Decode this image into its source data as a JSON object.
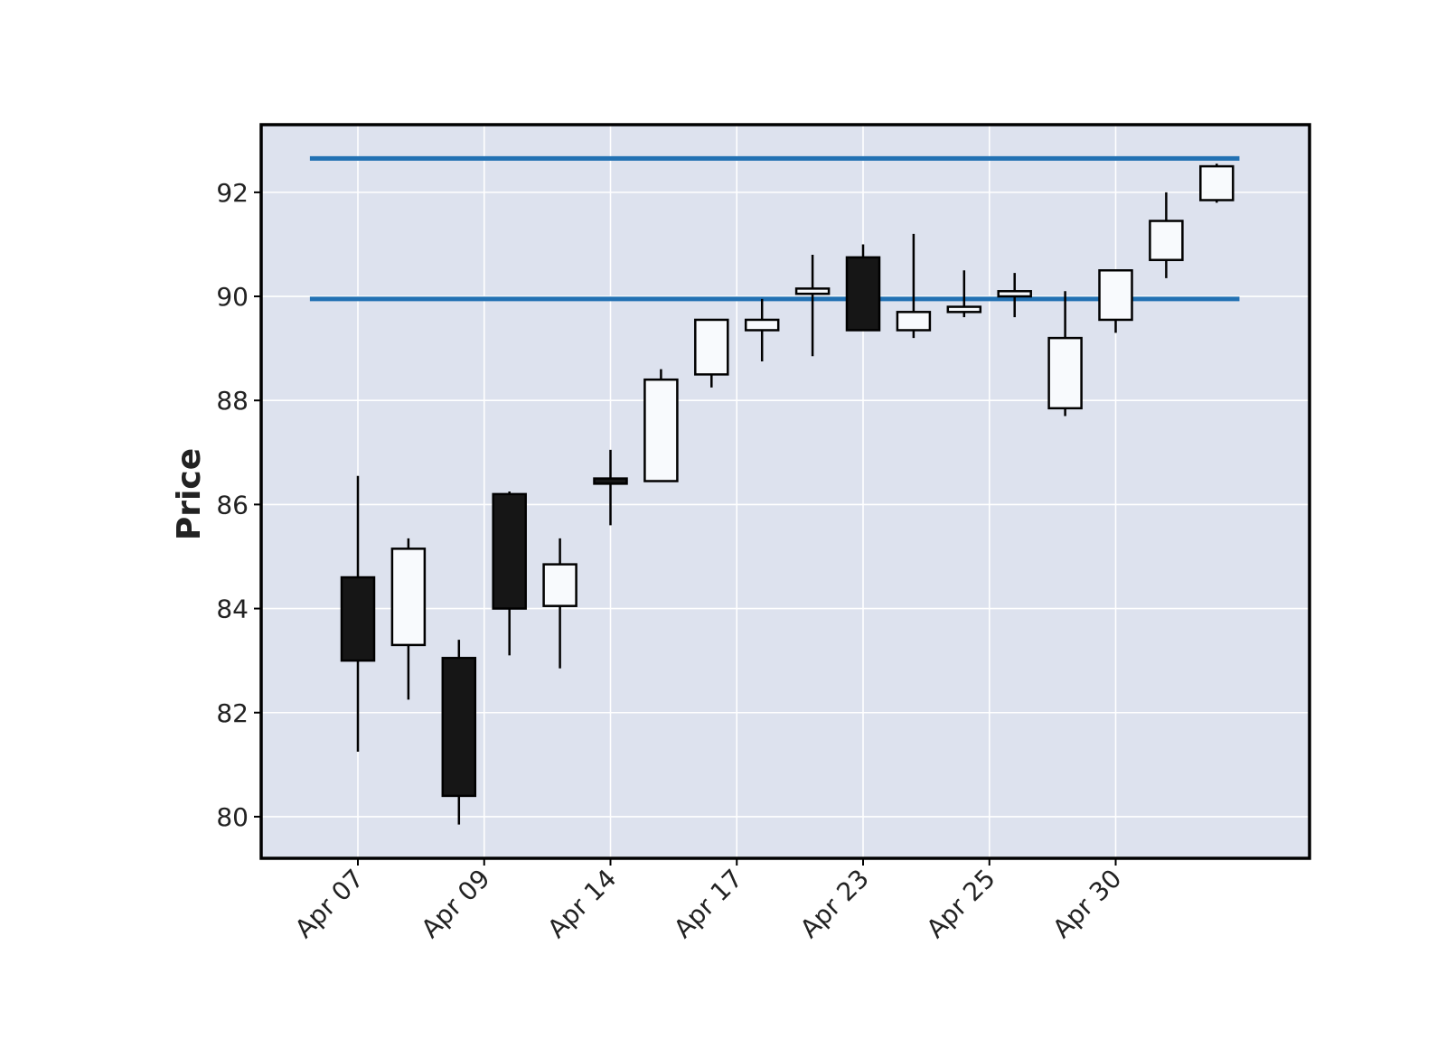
{
  "chart_data": {
    "type": "candlestick",
    "title": "",
    "xlabel": "",
    "ylabel": "Price",
    "ylim": [
      79.2,
      93.3
    ],
    "yticks": [
      80,
      82,
      84,
      86,
      88,
      90,
      92
    ],
    "xtick_labels": [
      "Apr 07",
      "Apr 09",
      "Apr 14",
      "Apr 17",
      "Apr 23",
      "Apr 25",
      "Apr 30"
    ],
    "xtick_positions": [
      0,
      2.5,
      5,
      7.5,
      10,
      12.5,
      15
    ],
    "grid": true,
    "candles": [
      {
        "open": 84.6,
        "high": 86.55,
        "low": 81.25,
        "close": 83.0
      },
      {
        "open": 83.3,
        "high": 85.35,
        "low": 82.25,
        "close": 85.15
      },
      {
        "open": 83.05,
        "high": 83.4,
        "low": 79.85,
        "close": 80.4
      },
      {
        "open": 86.2,
        "high": 86.25,
        "low": 83.1,
        "close": 84.0
      },
      {
        "open": 84.05,
        "high": 85.35,
        "low": 82.85,
        "close": 84.85
      },
      {
        "open": 86.5,
        "high": 87.05,
        "low": 85.6,
        "close": 86.4
      },
      {
        "open": 86.45,
        "high": 88.6,
        "low": 86.45,
        "close": 88.4
      },
      {
        "open": 88.5,
        "high": 89.55,
        "low": 88.25,
        "close": 89.55
      },
      {
        "open": 89.35,
        "high": 89.95,
        "low": 88.75,
        "close": 89.55
      },
      {
        "open": 90.05,
        "high": 90.8,
        "low": 88.85,
        "close": 90.15
      },
      {
        "open": 90.75,
        "high": 91.0,
        "low": 89.35,
        "close": 89.35
      },
      {
        "open": 89.35,
        "high": 91.2,
        "low": 89.2,
        "close": 89.7
      },
      {
        "open": 89.7,
        "high": 90.5,
        "low": 89.6,
        "close": 89.8
      },
      {
        "open": 90.0,
        "high": 90.45,
        "low": 89.6,
        "close": 90.1
      },
      {
        "open": 87.85,
        "high": 90.1,
        "low": 87.7,
        "close": 89.2
      },
      {
        "open": 89.55,
        "high": 90.5,
        "low": 89.3,
        "close": 90.5
      },
      {
        "open": 90.7,
        "high": 92.0,
        "low": 90.35,
        "close": 91.45
      },
      {
        "open": 91.85,
        "high": 92.55,
        "low": 91.8,
        "close": 92.5
      }
    ],
    "hlines": [
      92.65,
      89.95
    ],
    "colors": {
      "up_fill": "#f8fafd",
      "down_fill": "#161616",
      "candle_edge": "#000000",
      "hline": "#2271b3",
      "plot_bg": "#dde2ee",
      "grid": "#ffffff",
      "frame": "#000000",
      "text": "#222222"
    }
  }
}
